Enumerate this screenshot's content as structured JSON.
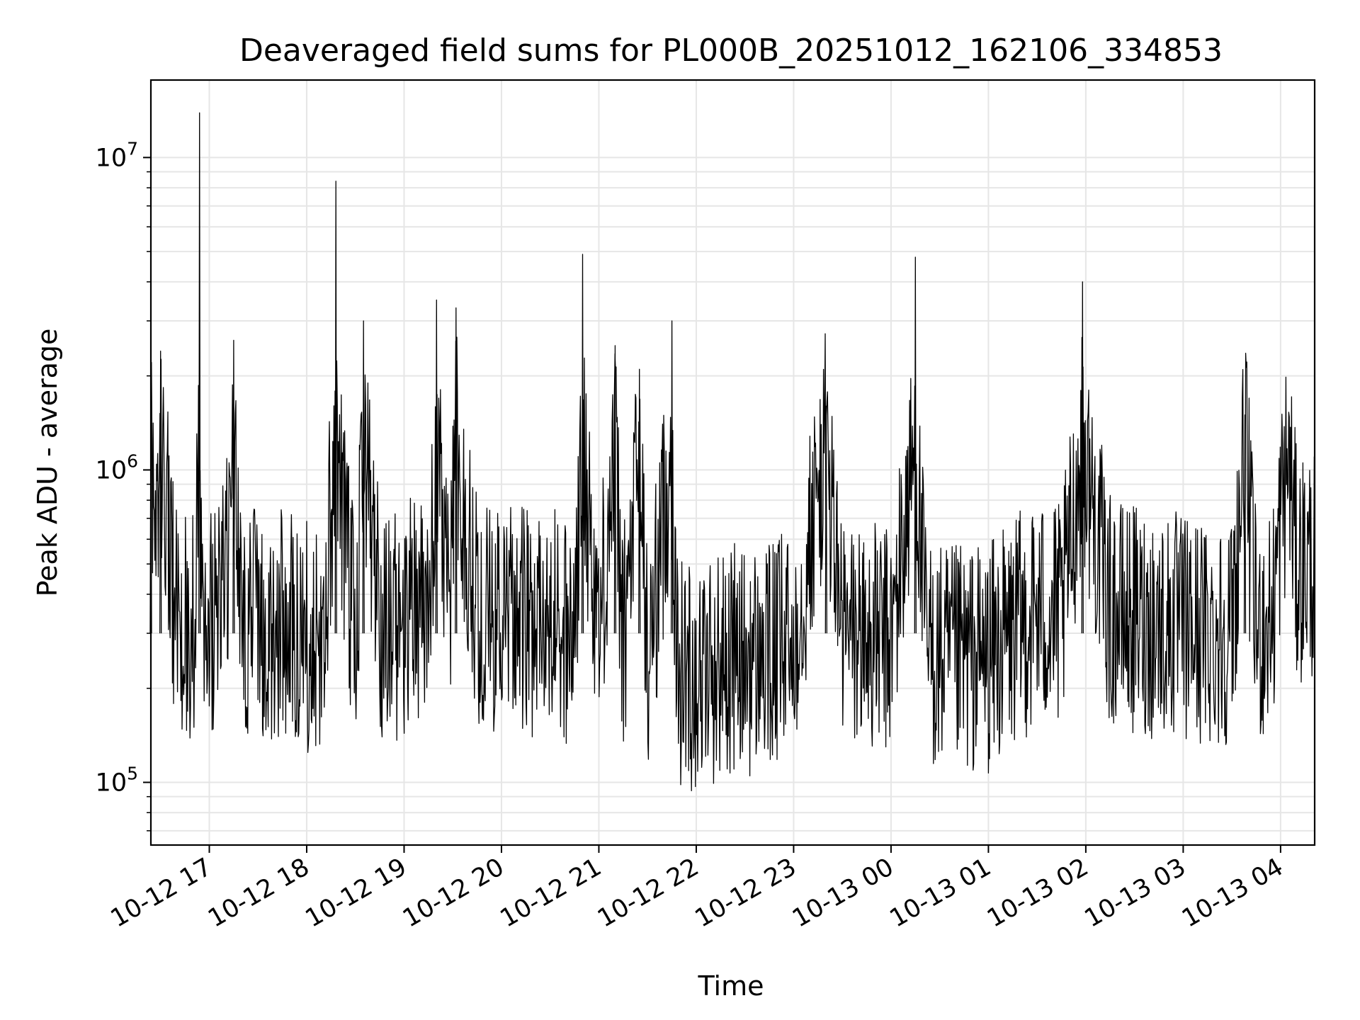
{
  "chart_data": {
    "type": "line",
    "title": "Deaveraged field sums for PL000B_20251012_162106_334853",
    "xlabel": "Time",
    "ylabel": "Peak ADU - average",
    "y_scale": "log",
    "ylim": [
      63000,
      17700000
    ],
    "xlim": [
      "2025-10-12 16:24",
      "2025-10-13 04:21"
    ],
    "x_ticks": [
      "2025-10-12 17:00",
      "2025-10-12 18:00",
      "2025-10-12 19:00",
      "2025-10-12 20:00",
      "2025-10-12 21:00",
      "2025-10-12 22:00",
      "2025-10-12 23:00",
      "2025-10-13 00:00",
      "2025-10-13 01:00",
      "2025-10-13 02:00",
      "2025-10-13 03:00",
      "2025-10-13 04:00"
    ],
    "x_tick_labels": [
      "10-12 17",
      "10-12 18",
      "10-12 19",
      "10-12 20",
      "10-12 21",
      "10-12 22",
      "10-12 23",
      "10-13 00",
      "10-13 01",
      "10-13 02",
      "10-13 03",
      "10-13 04"
    ],
    "y_tick_labels": [
      {
        "value": 100000,
        "base": "10",
        "exp": "5"
      },
      {
        "value": 1000000,
        "base": "10",
        "exp": "6"
      },
      {
        "value": 10000000,
        "base": "10",
        "exp": "7"
      }
    ],
    "grid": true,
    "series": [
      {
        "color": "#000000",
        "x": [
          "2025-10-12 16:24",
          "2025-10-12 16:27",
          "2025-10-12 16:30",
          "2025-10-12 16:33",
          "2025-10-12 16:36",
          "2025-10-12 16:39",
          "2025-10-12 16:42",
          "2025-10-12 16:45",
          "2025-10-12 16:48",
          "2025-10-12 16:51",
          "2025-10-12 16:54",
          "2025-10-12 16:57",
          "2025-10-12 17:00",
          "2025-10-12 17:10",
          "2025-10-12 17:15",
          "2025-10-12 17:20",
          "2025-10-12 17:30",
          "2025-10-12 17:38",
          "2025-10-12 17:45",
          "2025-10-12 18:00",
          "2025-10-12 18:10",
          "2025-10-12 18:18",
          "2025-10-12 18:30",
          "2025-10-12 18:35",
          "2025-10-12 18:45",
          "2025-10-12 19:00",
          "2025-10-12 19:03",
          "2025-10-12 19:15",
          "2025-10-12 19:20",
          "2025-10-12 19:28",
          "2025-10-12 19:32",
          "2025-10-12 19:45",
          "2025-10-12 20:00",
          "2025-10-12 20:15",
          "2025-10-12 20:30",
          "2025-10-12 20:45",
          "2025-10-12 20:50",
          "2025-10-12 21:00",
          "2025-10-12 21:10",
          "2025-10-12 21:15",
          "2025-10-12 21:25",
          "2025-10-12 21:30",
          "2025-10-12 21:45",
          "2025-10-12 21:48",
          "2025-10-12 22:00",
          "2025-10-12 22:15",
          "2025-10-12 22:22",
          "2025-10-12 22:30",
          "2025-10-12 22:45",
          "2025-10-12 23:00",
          "2025-10-12 23:20",
          "2025-10-12 23:30",
          "2025-10-12 23:45",
          "2025-10-13 00:00",
          "2025-10-13 00:15",
          "2025-10-13 00:22",
          "2025-10-13 00:35",
          "2025-10-13 00:50",
          "2025-10-13 01:00",
          "2025-10-13 01:15",
          "2025-10-13 01:30",
          "2025-10-13 01:45",
          "2025-10-13 01:58",
          "2025-10-13 02:15",
          "2025-10-13 02:30",
          "2025-10-13 02:45",
          "2025-10-13 03:00",
          "2025-10-13 03:15",
          "2025-10-13 03:30",
          "2025-10-13 03:38",
          "2025-10-13 03:45",
          "2025-10-13 03:55",
          "2025-10-13 04:00",
          "2025-10-13 04:05",
          "2025-10-13 04:10",
          "2025-10-13 04:15",
          "2025-10-13 04:21"
        ],
        "y": [
          1500000,
          750000,
          2400000,
          900000,
          500000,
          380000,
          320000,
          300000,
          290000,
          330000,
          13900000,
          350000,
          320000,
          400000,
          2600000,
          310000,
          330000,
          300000,
          340000,
          290000,
          310000,
          8400000,
          280000,
          3000000,
          330000,
          320000,
          360000,
          390000,
          3500000,
          380000,
          3300000,
          350000,
          330000,
          320000,
          330000,
          300000,
          4900000,
          300000,
          2500000,
          260000,
          2100000,
          230000,
          3000000,
          230000,
          220000,
          240000,
          250000,
          240000,
          250000,
          280000,
          1600000,
          300000,
          290000,
          280000,
          4800000,
          260000,
          240000,
          250000,
          250000,
          300000,
          350000,
          330000,
          4000000,
          350000,
          330000,
          320000,
          310000,
          300000,
          310000,
          1500000,
          300000,
          330000,
          700000,
          1100000,
          480000,
          500000,
          500000
        ]
      }
    ]
  }
}
